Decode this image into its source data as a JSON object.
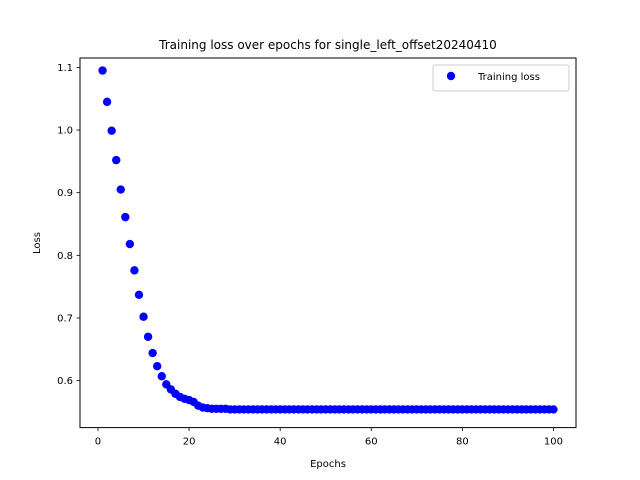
{
  "chart_data": {
    "type": "scatter",
    "title": "Training loss over epochs for single_left_offset20240410",
    "xlabel": "Epochs",
    "ylabel": "Loss",
    "xlim": [
      -3.95,
      104.95
    ],
    "ylim": [
      0.525,
      1.115
    ],
    "xticks": [
      0,
      20,
      40,
      60,
      80,
      100
    ],
    "yticks": [
      0.6,
      0.7,
      0.8,
      0.9,
      1.0,
      1.1
    ],
    "xtick_labels": [
      "0",
      "20",
      "40",
      "60",
      "80",
      "100"
    ],
    "ytick_labels": [
      "0.6",
      "0.7",
      "0.8",
      "0.9",
      "1.0",
      "1.1"
    ],
    "grid": false,
    "legend_position": "top-right",
    "series": [
      {
        "name": "Training loss",
        "color": "#0000ff",
        "marker": "circle",
        "x": [
          1,
          2,
          3,
          4,
          5,
          6,
          7,
          8,
          9,
          10,
          11,
          12,
          13,
          14,
          15,
          16,
          17,
          18,
          19,
          20,
          21,
          22,
          23,
          24,
          25,
          26,
          27,
          28,
          29,
          30,
          31,
          32,
          33,
          34,
          35,
          36,
          37,
          38,
          39,
          40,
          41,
          42,
          43,
          44,
          45,
          46,
          47,
          48,
          49,
          50,
          51,
          52,
          53,
          54,
          55,
          56,
          57,
          58,
          59,
          60,
          61,
          62,
          63,
          64,
          65,
          66,
          67,
          68,
          69,
          70,
          71,
          72,
          73,
          74,
          75,
          76,
          77,
          78,
          79,
          80,
          81,
          82,
          83,
          84,
          85,
          86,
          87,
          88,
          89,
          90,
          91,
          92,
          93,
          94,
          95,
          96,
          97,
          98,
          99,
          100
        ],
        "y": [
          1.095,
          1.045,
          0.999,
          0.952,
          0.905,
          0.861,
          0.818,
          0.776,
          0.737,
          0.702,
          0.67,
          0.644,
          0.623,
          0.607,
          0.594,
          0.586,
          0.579,
          0.574,
          0.571,
          0.569,
          0.566,
          0.56,
          0.557,
          0.556,
          0.555,
          0.555,
          0.555,
          0.555,
          0.554,
          0.554,
          0.554,
          0.554,
          0.554,
          0.554,
          0.554,
          0.554,
          0.554,
          0.554,
          0.554,
          0.554,
          0.554,
          0.554,
          0.554,
          0.554,
          0.554,
          0.554,
          0.554,
          0.554,
          0.554,
          0.554,
          0.554,
          0.554,
          0.554,
          0.554,
          0.554,
          0.554,
          0.554,
          0.554,
          0.554,
          0.554,
          0.554,
          0.554,
          0.554,
          0.554,
          0.554,
          0.554,
          0.554,
          0.554,
          0.554,
          0.554,
          0.554,
          0.554,
          0.554,
          0.554,
          0.554,
          0.554,
          0.554,
          0.554,
          0.554,
          0.554,
          0.554,
          0.554,
          0.554,
          0.554,
          0.554,
          0.554,
          0.554,
          0.554,
          0.554,
          0.554,
          0.554,
          0.554,
          0.554,
          0.554,
          0.554,
          0.554,
          0.554,
          0.554,
          0.554,
          0.554
        ]
      }
    ]
  }
}
